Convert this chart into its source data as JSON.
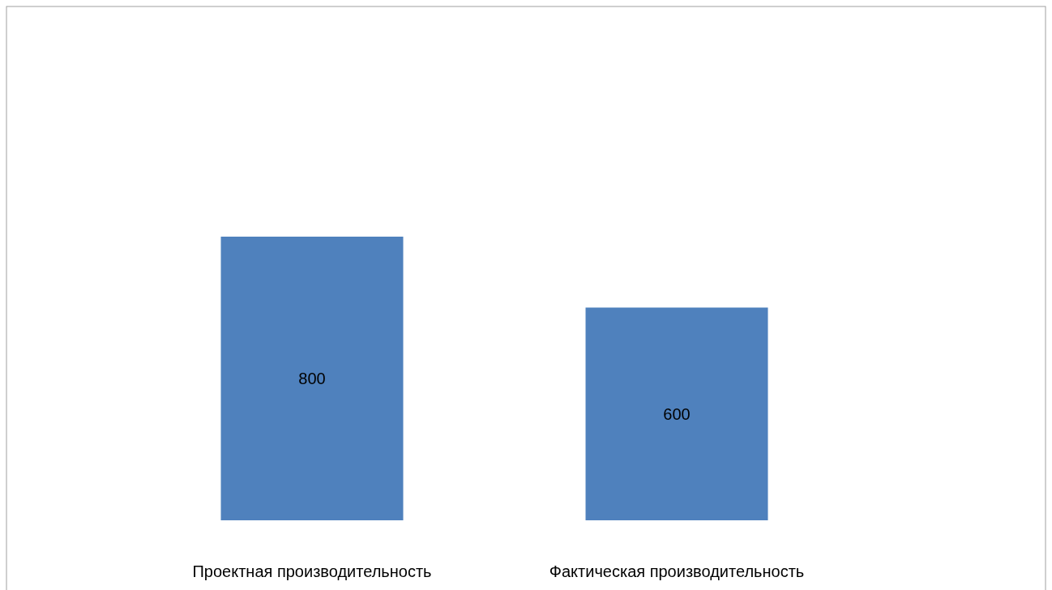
{
  "chart_data": {
    "type": "bar",
    "categories": [
      "Проектная производительность",
      "Фактическая производительность"
    ],
    "values": [
      800,
      600
    ],
    "color": "#4f81bd",
    "data_labels": true
  }
}
